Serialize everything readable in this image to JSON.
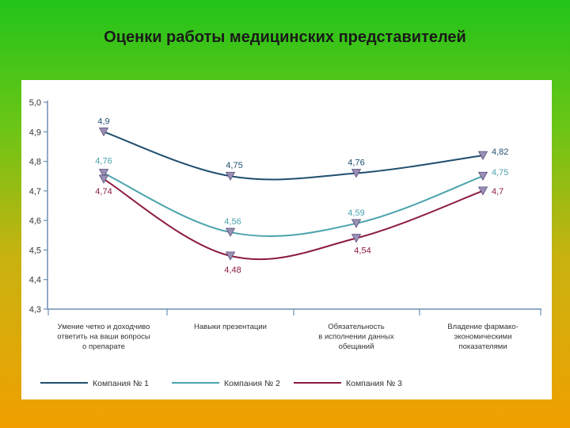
{
  "slide": {
    "title": "Оценки работы медицинских представителей"
  },
  "colors": {
    "background_top": "#22c41a",
    "background_bottom": "#f0a000",
    "panel": "#ffffff",
    "axis": "#6f8fb0",
    "marker_fill": "#9a8fb5"
  },
  "chart_data": {
    "type": "line",
    "title": "",
    "xlabel": "",
    "ylabel": "",
    "ylim": [
      4.3,
      5.0
    ],
    "yticks": [
      "5,0",
      "4,9",
      "4,8",
      "4,7",
      "4,6",
      "4,5",
      "4,4",
      "4,3"
    ],
    "ytick_values": [
      5.0,
      4.9,
      4.8,
      4.7,
      4.6,
      4.5,
      4.4,
      4.3
    ],
    "grid": false,
    "legend_position": "bottom",
    "categories": [
      [
        "Умение четко и доходчиво",
        "ответить на ваши вопросы",
        "о препарате"
      ],
      [
        "Навыки презентации"
      ],
      [
        "Обязательность",
        "в исполнении данных",
        "обещаний"
      ],
      [
        "Владение фармако-",
        "экономическими",
        "показателями"
      ]
    ],
    "series": [
      {
        "name": "Компания № 1",
        "color": "#1f4f6e",
        "values": [
          4.9,
          4.75,
          4.76,
          4.82
        ],
        "labels": [
          "4,9",
          "4,75",
          "4,76",
          "4,82"
        ]
      },
      {
        "name": "Компания № 2",
        "color": "#4aa3ad",
        "values": [
          4.76,
          4.56,
          4.59,
          4.75
        ],
        "labels": [
          "4,76",
          "4,56",
          "4,59",
          "4,75"
        ]
      },
      {
        "name": "Компания № 3",
        "color": "#8c1c3c",
        "values": [
          4.74,
          4.48,
          4.54,
          4.7
        ],
        "labels": [
          "4,74",
          "4,48",
          "4,54",
          "4,7"
        ]
      }
    ]
  }
}
